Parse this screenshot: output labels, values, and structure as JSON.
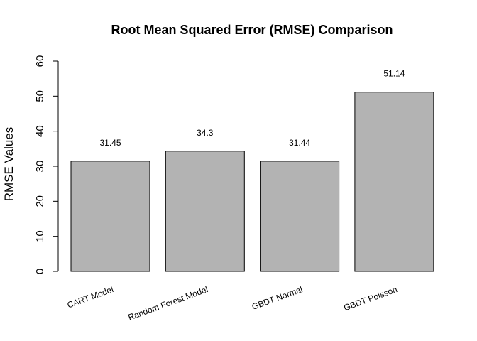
{
  "chart_data": {
    "type": "bar",
    "title": "Root Mean Squared Error (RMSE) Comparison",
    "xlabel": "",
    "ylabel": "RMSE Values",
    "categories": [
      "CART Model",
      "Random Forest Model",
      "GBDT Normal",
      "GBDT Poisson"
    ],
    "values": [
      31.45,
      34.3,
      31.44,
      51.14
    ],
    "data_labels": [
      "31.45",
      "34.3",
      "31.44",
      "51.14"
    ],
    "ylim": [
      0,
      60
    ],
    "yticks": [
      0,
      10,
      20,
      30,
      40,
      50,
      60
    ],
    "grid": false,
    "legend": "none",
    "bar_color": "#b3b3b3"
  }
}
